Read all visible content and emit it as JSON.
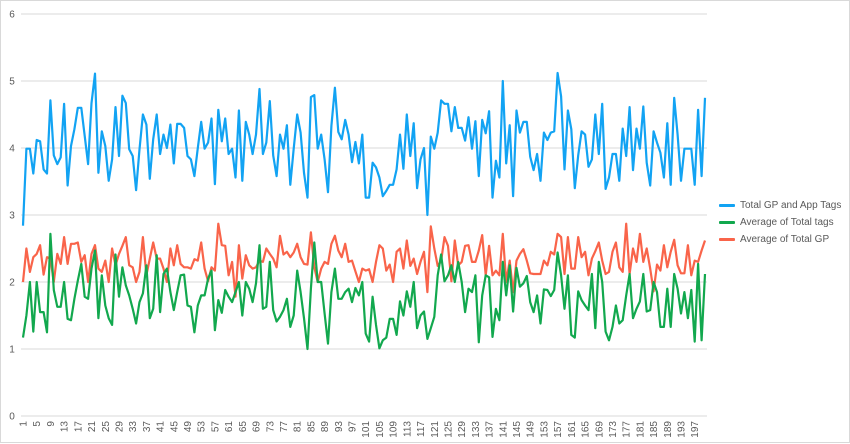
{
  "chart_data": {
    "type": "line",
    "title": "",
    "xlabel": "",
    "ylabel": "",
    "ylim": [
      0,
      6
    ],
    "yticks": [
      0,
      1,
      2,
      3,
      4,
      5,
      6
    ],
    "x_start": 1,
    "x_count": 200,
    "x_ticks": [
      1,
      5,
      9,
      13,
      17,
      21,
      25,
      29,
      33,
      37,
      41,
      45,
      49,
      53,
      57,
      61,
      65,
      69,
      73,
      77,
      81,
      85,
      89,
      93,
      97,
      101,
      105,
      109,
      113,
      117,
      121,
      125,
      129,
      133,
      137,
      141,
      145,
      149,
      153,
      157,
      161,
      165,
      169,
      173,
      177,
      181,
      185,
      189,
      193,
      197
    ],
    "grid": true,
    "legend_position": "right",
    "series": [
      {
        "name": "Total GP and App Tags",
        "color": "#12a3f3",
        "values": [
          2.84,
          3.99,
          3.99,
          3.62,
          4.12,
          4.1,
          3.68,
          3.62,
          4.71,
          3.89,
          3.76,
          3.86,
          4.66,
          3.44,
          4.03,
          4.28,
          4.6,
          4.6,
          4.18,
          3.76,
          4.67,
          5.11,
          3.63,
          4.25,
          4.03,
          3.51,
          3.83,
          4.61,
          3.88,
          4.78,
          4.67,
          3.98,
          3.88,
          3.37,
          3.98,
          4.5,
          4.35,
          3.54,
          4.13,
          4.5,
          3.91,
          4.2,
          4.0,
          4.35,
          3.77,
          4.36,
          4.36,
          4.3,
          3.88,
          3.83,
          3.58,
          4.0,
          4.39,
          3.99,
          4.08,
          4.44,
          3.46,
          4.57,
          4.1,
          4.44,
          3.91,
          3.99,
          3.56,
          4.56,
          3.51,
          4.39,
          4.2,
          3.91,
          4.2,
          4.88,
          3.91,
          4.08,
          4.7,
          3.89,
          3.58,
          4.2,
          3.99,
          4.34,
          3.45,
          3.99,
          4.5,
          4.23,
          3.63,
          3.26,
          4.76,
          4.79,
          3.99,
          4.2,
          3.83,
          3.34,
          4.33,
          4.9,
          4.24,
          4.13,
          4.42,
          4.2,
          3.79,
          4.09,
          3.77,
          4.2,
          3.26,
          3.26,
          3.78,
          3.71,
          3.56,
          3.28,
          3.36,
          3.45,
          3.45,
          3.68,
          4.2,
          3.69,
          4.5,
          3.88,
          4.37,
          3.4,
          3.83,
          4.0,
          3.0,
          4.17,
          3.99,
          4.23,
          4.71,
          4.66,
          4.66,
          4.25,
          4.61,
          4.3,
          4.3,
          4.11,
          4.46,
          3.99,
          4.4,
          3.58,
          4.42,
          4.22,
          4.55,
          3.26,
          3.81,
          3.56,
          5.0,
          3.77,
          4.34,
          3.28,
          4.56,
          4.23,
          4.39,
          4.39,
          3.87,
          3.67,
          3.91,
          3.51,
          4.23,
          4.12,
          4.23,
          4.25,
          5.12,
          4.77,
          3.68,
          4.56,
          4.28,
          3.4,
          3.89,
          4.25,
          4.2,
          3.72,
          3.83,
          4.5,
          3.91,
          4.66,
          3.39,
          3.56,
          3.91,
          3.91,
          3.51,
          4.29,
          3.88,
          4.61,
          3.67,
          4.29,
          3.99,
          4.62,
          3.78,
          3.44,
          4.25,
          4.08,
          3.93,
          3.56,
          4.37,
          3.45,
          4.75,
          4.2,
          3.51,
          3.99,
          3.99,
          3.99,
          3.45,
          4.57,
          3.58,
          4.75
        ]
      },
      {
        "name": "Average of Total tags",
        "color": "#12a84e",
        "values": [
          1.17,
          1.5,
          2.0,
          1.26,
          2.0,
          1.55,
          1.55,
          1.25,
          2.72,
          1.88,
          1.63,
          1.63,
          2.0,
          1.45,
          1.43,
          1.75,
          2.02,
          2.27,
          1.78,
          1.75,
          2.2,
          2.47,
          1.46,
          2.1,
          1.65,
          1.46,
          1.36,
          2.41,
          1.78,
          2.22,
          1.95,
          1.8,
          1.6,
          1.38,
          1.7,
          1.83,
          2.25,
          1.46,
          1.6,
          2.4,
          1.55,
          2.12,
          2.2,
          1.85,
          1.58,
          1.85,
          2.1,
          2.11,
          1.65,
          1.63,
          1.25,
          1.65,
          1.8,
          1.8,
          2.05,
          2.17,
          1.28,
          1.73,
          1.54,
          1.88,
          1.78,
          1.7,
          1.85,
          2.0,
          1.5,
          2.0,
          1.9,
          1.7,
          1.98,
          2.55,
          1.6,
          1.63,
          2.3,
          1.58,
          1.41,
          1.48,
          1.58,
          1.75,
          1.33,
          1.5,
          2.17,
          1.85,
          1.46,
          1.0,
          1.9,
          2.59,
          2.0,
          2.0,
          1.53,
          1.08,
          1.85,
          2.2,
          1.75,
          1.75,
          1.85,
          1.9,
          1.7,
          1.91,
          1.8,
          2.0,
          1.23,
          1.11,
          1.78,
          1.36,
          1.01,
          1.13,
          1.17,
          1.45,
          1.45,
          1.21,
          1.71,
          1.5,
          1.86,
          1.63,
          2.0,
          1.31,
          1.5,
          1.56,
          1.15,
          1.31,
          1.48,
          2.1,
          2.41,
          2.01,
          2.1,
          2.25,
          2.0,
          2.3,
          2.0,
          1.55,
          1.9,
          1.85,
          2.1,
          1.1,
          1.8,
          2.1,
          2.07,
          1.18,
          1.6,
          1.43,
          2.3,
          1.8,
          2.25,
          1.56,
          2.21,
          1.93,
          1.98,
          2.09,
          1.7,
          1.55,
          1.8,
          1.38,
          1.89,
          1.88,
          1.79,
          1.88,
          2.44,
          2.1,
          1.6,
          2.1,
          1.21,
          1.17,
          1.86,
          1.73,
          1.65,
          1.58,
          2.12,
          1.31,
          2.3,
          2.0,
          1.26,
          1.13,
          1.33,
          1.65,
          1.38,
          1.43,
          1.8,
          2.12,
          1.46,
          1.6,
          1.71,
          2.12,
          1.56,
          1.58,
          2.0,
          1.85,
          1.33,
          1.33,
          1.9,
          1.33,
          2.12,
          1.9,
          1.53,
          1.85,
          1.46,
          1.88,
          1.11,
          2.27,
          1.13,
          2.12
        ]
      },
      {
        "name": "Average of Total GP",
        "color": "#f9644a",
        "values": [
          2.0,
          2.5,
          2.15,
          2.37,
          2.42,
          2.55,
          2.11,
          2.37,
          2.35,
          2.0,
          2.42,
          2.27,
          2.67,
          2.27,
          2.57,
          2.57,
          2.59,
          2.3,
          2.4,
          2.0,
          2.42,
          2.55,
          2.2,
          2.15,
          2.32,
          2.0,
          2.5,
          2.25,
          2.42,
          2.54,
          2.67,
          2.25,
          2.22,
          2.0,
          2.15,
          2.67,
          2.1,
          2.35,
          2.59,
          2.35,
          2.35,
          2.2,
          2.0,
          2.5,
          2.25,
          2.55,
          2.27,
          2.22,
          2.22,
          2.2,
          2.34,
          2.32,
          2.59,
          2.2,
          2.01,
          2.22,
          2.17,
          2.87,
          2.55,
          2.54,
          2.1,
          2.3,
          1.78,
          2.55,
          2.05,
          2.4,
          2.25,
          2.2,
          2.22,
          2.32,
          2.3,
          2.5,
          2.42,
          2.35,
          2.22,
          2.69,
          2.41,
          2.45,
          2.37,
          2.44,
          2.57,
          2.37,
          2.27,
          2.26,
          2.74,
          2.22,
          2.0,
          2.2,
          2.3,
          2.27,
          2.57,
          2.69,
          2.47,
          2.37,
          2.57,
          2.3,
          2.32,
          2.16,
          2.0,
          2.2,
          2.17,
          2.19,
          2.0,
          2.3,
          2.55,
          2.5,
          2.17,
          2.26,
          2.0,
          2.45,
          2.5,
          2.2,
          2.62,
          2.24,
          2.35,
          2.12,
          2.3,
          2.45,
          1.85,
          2.83,
          2.5,
          2.24,
          2.31,
          2.67,
          2.54,
          2.01,
          2.62,
          2.25,
          2.3,
          2.54,
          2.55,
          2.3,
          2.3,
          2.47,
          2.7,
          2.1,
          2.54,
          2.1,
          2.17,
          2.1,
          2.72,
          2.0,
          2.32,
          1.85,
          2.32,
          2.42,
          2.49,
          2.32,
          2.13,
          2.12,
          2.12,
          2.12,
          2.32,
          2.25,
          2.45,
          2.41,
          2.72,
          2.67,
          2.12,
          2.67,
          2.2,
          2.2,
          2.67,
          2.37,
          2.45,
          2.1,
          2.35,
          2.46,
          2.59,
          2.32,
          2.12,
          2.15,
          2.45,
          2.59,
          2.22,
          2.15,
          2.87,
          2.12,
          2.5,
          2.3,
          2.72,
          2.3,
          2.5,
          2.2,
          1.86,
          2.26,
          2.17,
          2.55,
          2.22,
          2.45,
          2.63,
          2.25,
          2.13,
          2.13,
          2.55,
          2.1,
          2.32,
          2.3,
          2.47,
          2.62
        ]
      }
    ]
  }
}
